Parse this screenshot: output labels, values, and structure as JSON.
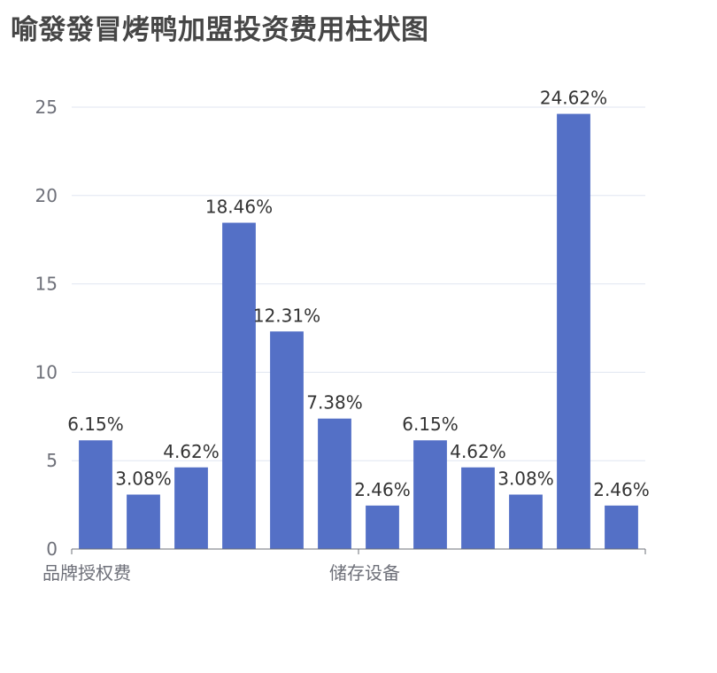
{
  "chart_data": {
    "type": "bar",
    "title": "喻發發冒烤鸭加盟投资费用柱状图",
    "xlabel": "",
    "ylabel": "",
    "categories": [
      "品牌授权费",
      "",
      "",
      "",
      "",
      "",
      "储存设备",
      "",
      "",
      "",
      "",
      ""
    ],
    "values": [
      6.15,
      3.08,
      4.62,
      18.46,
      12.31,
      7.38,
      2.46,
      6.15,
      4.62,
      3.08,
      24.62,
      2.46
    ],
    "data_labels": [
      "6.15%",
      "3.08%",
      "4.62%",
      "18.46%",
      "12.31%",
      "7.38%",
      "2.46%",
      "6.15%",
      "4.62%",
      "3.08%",
      "24.62%",
      "2.46%"
    ],
    "ylim": [
      0,
      25
    ],
    "yticks": [
      "0",
      "5",
      "10",
      "15",
      "20",
      "25"
    ],
    "grid": true,
    "legend": "none",
    "bar_color": "#5470c6"
  }
}
